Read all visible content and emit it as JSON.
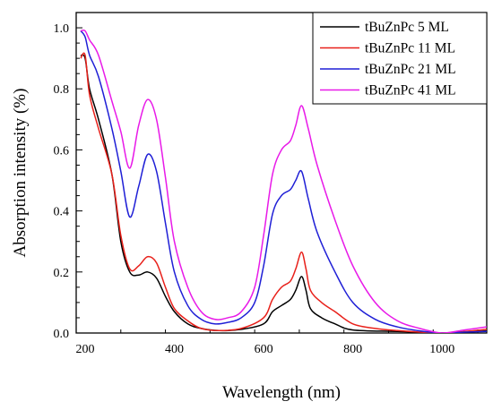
{
  "chart_data": {
    "type": "line",
    "xlabel": "Wavelength (nm)",
    "ylabel": "Absorption intensity (%)",
    "xlim": [
      180,
      1100
    ],
    "ylim": [
      0,
      1.05
    ],
    "xticks": [
      200,
      400,
      600,
      800,
      1000
    ],
    "yticks": [
      0.0,
      0.2,
      0.4,
      0.6,
      0.8,
      1.0
    ],
    "x_tick_labels": [
      "200",
      "400",
      "600",
      "800",
      "1000"
    ],
    "y_tick_labels": [
      "0.0",
      "0.2",
      "0.4",
      "0.6",
      "0.8",
      "1.0"
    ],
    "legend_position": "top-right",
    "grid": false,
    "series": [
      {
        "name": "tBuZnPc 5 ML",
        "color": "#000000",
        "points": [
          [
            190,
            0.91
          ],
          [
            200,
            0.9
          ],
          [
            210,
            0.8
          ],
          [
            230,
            0.7
          ],
          [
            260,
            0.52
          ],
          [
            280,
            0.3
          ],
          [
            300,
            0.2
          ],
          [
            320,
            0.19
          ],
          [
            340,
            0.2
          ],
          [
            360,
            0.18
          ],
          [
            380,
            0.12
          ],
          [
            400,
            0.07
          ],
          [
            430,
            0.03
          ],
          [
            460,
            0.015
          ],
          [
            500,
            0.008
          ],
          [
            550,
            0.012
          ],
          [
            600,
            0.03
          ],
          [
            620,
            0.07
          ],
          [
            640,
            0.09
          ],
          [
            660,
            0.11
          ],
          [
            672,
            0.14
          ],
          [
            685,
            0.185
          ],
          [
            695,
            0.14
          ],
          [
            705,
            0.08
          ],
          [
            730,
            0.05
          ],
          [
            760,
            0.03
          ],
          [
            800,
            0.01
          ],
          [
            900,
            0.005
          ],
          [
            1000,
            0.0
          ],
          [
            1050,
            0.003
          ],
          [
            1100,
            0.007
          ]
        ]
      },
      {
        "name": "tBuZnPc 11 ML",
        "color": "#e8201a",
        "points": [
          [
            190,
            0.9
          ],
          [
            200,
            0.91
          ],
          [
            210,
            0.78
          ],
          [
            230,
            0.67
          ],
          [
            260,
            0.52
          ],
          [
            280,
            0.32
          ],
          [
            300,
            0.21
          ],
          [
            320,
            0.22
          ],
          [
            340,
            0.25
          ],
          [
            360,
            0.23
          ],
          [
            380,
            0.15
          ],
          [
            400,
            0.08
          ],
          [
            430,
            0.04
          ],
          [
            460,
            0.015
          ],
          [
            500,
            0.008
          ],
          [
            550,
            0.015
          ],
          [
            600,
            0.05
          ],
          [
            620,
            0.11
          ],
          [
            640,
            0.15
          ],
          [
            660,
            0.17
          ],
          [
            672,
            0.21
          ],
          [
            685,
            0.265
          ],
          [
            695,
            0.21
          ],
          [
            705,
            0.14
          ],
          [
            730,
            0.1
          ],
          [
            760,
            0.07
          ],
          [
            800,
            0.03
          ],
          [
            850,
            0.015
          ],
          [
            900,
            0.008
          ],
          [
            950,
            0.003
          ],
          [
            1000,
            0.0
          ],
          [
            1050,
            0.005
          ],
          [
            1100,
            0.012
          ]
        ]
      },
      {
        "name": "tBuZnPc 21 ML",
        "color": "#1f1fd6",
        "points": [
          [
            190,
            0.99
          ],
          [
            200,
            0.97
          ],
          [
            210,
            0.91
          ],
          [
            230,
            0.84
          ],
          [
            260,
            0.67
          ],
          [
            280,
            0.53
          ],
          [
            300,
            0.38
          ],
          [
            320,
            0.48
          ],
          [
            340,
            0.585
          ],
          [
            360,
            0.53
          ],
          [
            380,
            0.36
          ],
          [
            400,
            0.2
          ],
          [
            430,
            0.09
          ],
          [
            460,
            0.045
          ],
          [
            490,
            0.03
          ],
          [
            520,
            0.035
          ],
          [
            550,
            0.05
          ],
          [
            580,
            0.1
          ],
          [
            600,
            0.22
          ],
          [
            620,
            0.39
          ],
          [
            640,
            0.45
          ],
          [
            660,
            0.47
          ],
          [
            672,
            0.5
          ],
          [
            685,
            0.53
          ],
          [
            700,
            0.44
          ],
          [
            720,
            0.33
          ],
          [
            760,
            0.2
          ],
          [
            800,
            0.1
          ],
          [
            850,
            0.045
          ],
          [
            900,
            0.02
          ],
          [
            950,
            0.007
          ],
          [
            1000,
            0.0
          ],
          [
            1050,
            0.003
          ],
          [
            1100,
            0.005
          ]
        ]
      },
      {
        "name": "tBuZnPc 41 ML",
        "color": "#e81ae8",
        "points": [
          [
            190,
            0.99
          ],
          [
            200,
            0.99
          ],
          [
            210,
            0.96
          ],
          [
            230,
            0.91
          ],
          [
            260,
            0.76
          ],
          [
            280,
            0.66
          ],
          [
            300,
            0.54
          ],
          [
            320,
            0.68
          ],
          [
            340,
            0.765
          ],
          [
            360,
            0.7
          ],
          [
            380,
            0.51
          ],
          [
            400,
            0.3
          ],
          [
            430,
            0.15
          ],
          [
            460,
            0.07
          ],
          [
            490,
            0.045
          ],
          [
            520,
            0.05
          ],
          [
            550,
            0.07
          ],
          [
            580,
            0.15
          ],
          [
            600,
            0.32
          ],
          [
            620,
            0.52
          ],
          [
            640,
            0.6
          ],
          [
            660,
            0.63
          ],
          [
            672,
            0.68
          ],
          [
            685,
            0.745
          ],
          [
            700,
            0.67
          ],
          [
            720,
            0.55
          ],
          [
            760,
            0.37
          ],
          [
            800,
            0.22
          ],
          [
            850,
            0.1
          ],
          [
            900,
            0.04
          ],
          [
            950,
            0.015
          ],
          [
            1000,
            0.0
          ],
          [
            1050,
            0.01
          ],
          [
            1100,
            0.02
          ]
        ]
      }
    ]
  }
}
